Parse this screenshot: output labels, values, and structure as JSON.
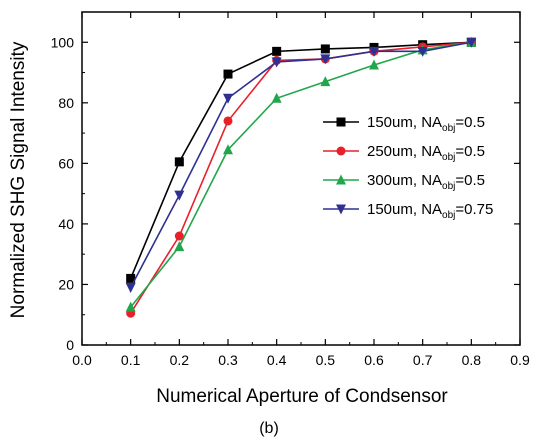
{
  "chart_data": {
    "type": "line",
    "xlabel": "Numerical Aperture of Condsensor",
    "ylabel": "Normalized SHG Signal Intensity",
    "caption": "(b)",
    "xlim": [
      0.0,
      0.9
    ],
    "ylim": [
      0,
      110
    ],
    "xticks": [
      "0.0",
      "0.1",
      "0.2",
      "0.3",
      "0.4",
      "0.5",
      "0.6",
      "0.7",
      "0.8",
      "0.9"
    ],
    "yticks": [
      "0",
      "20",
      "40",
      "60",
      "80",
      "100"
    ],
    "grid": false,
    "legend_position": "center-right",
    "x": [
      0.1,
      0.2,
      0.3,
      0.4,
      0.5,
      0.6,
      0.7,
      0.8
    ],
    "series": [
      {
        "name": "150um, NA",
        "name_sub": "obj",
        "name_suffix": "=0.5",
        "color": "#000000",
        "marker": "square",
        "values": [
          22,
          60.5,
          89.5,
          97,
          97.8,
          98.3,
          99.2,
          100
        ]
      },
      {
        "name": "250um, NA",
        "name_sub": "obj",
        "name_suffix": "=0.5",
        "color": "#e8202a",
        "marker": "circle",
        "values": [
          10.5,
          36,
          74,
          94,
          94.5,
          97,
          98.5,
          100
        ]
      },
      {
        "name": "300um, NA",
        "name_sub": "obj",
        "name_suffix": "=0.5",
        "color": "#21a64b",
        "marker": "triangle-up",
        "values": [
          12.5,
          32.5,
          64.5,
          81.5,
          87,
          92.5,
          97.5,
          100
        ]
      },
      {
        "name": "150um, NA",
        "name_sub": "obj",
        "name_suffix": "=0.75",
        "color": "#2e3192",
        "marker": "triangle-down",
        "values": [
          19,
          49.5,
          81.5,
          93.5,
          94.5,
          97,
          97,
          100
        ]
      }
    ]
  }
}
